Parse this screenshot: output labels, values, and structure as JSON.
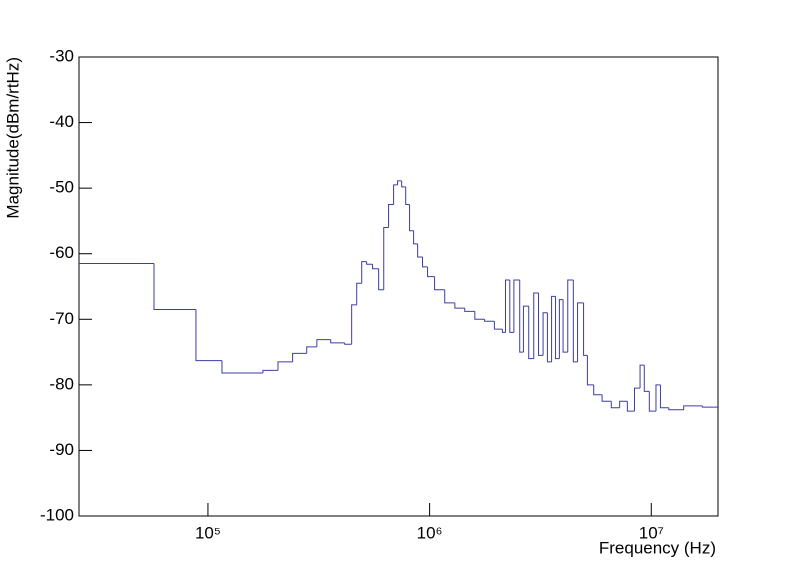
{
  "chart_data": {
    "type": "histogram",
    "x_label": "Frequency (Hz)",
    "y_label": "Magnitude(dBm/rtHz)",
    "xscale": "log",
    "color": "#3c3ca8",
    "grid": false,
    "xlim": [
      26200,
      20000000
    ],
    "ylim": [
      -100,
      -30
    ],
    "xticks": [
      {
        "value": 100000,
        "label": "10⁵"
      },
      {
        "value": 1000000,
        "label": "10⁶"
      },
      {
        "value": 10000000,
        "label": "10⁷"
      }
    ],
    "yticks": [
      -100,
      -90,
      -80,
      -70,
      -60,
      -50,
      -40,
      -30
    ],
    "bins": [
      26200,
      57100,
      88300,
      115700,
      177000,
      207000,
      241000,
      279000,
      310000,
      358000,
      414000,
      445000,
      469000,
      494000,
      520000,
      553000,
      589000,
      621000,
      653000,
      688000,
      717000,
      748000,
      780000,
      812000,
      847000,
      883000,
      929000,
      979000,
      1053000,
      1170000,
      1300000,
      1440000,
      1600000,
      1770000,
      1960000,
      2130000,
      2200000,
      2300000,
      2400000,
      2550000,
      2650000,
      2800000,
      2950000,
      3100000,
      3250000,
      3400000,
      3550000,
      3700000,
      3850000,
      4000000,
      4200000,
      4450000,
      4650000,
      4950000,
      5150000,
      5500000,
      6000000,
      6600000,
      7200000,
      7800000,
      8400000,
      8900000,
      9300000,
      9800000,
      10500000,
      11000000,
      12000000,
      14000000,
      17000000,
      20000000
    ],
    "values": [
      -61.5,
      -68.5,
      -76.3,
      -78.2,
      -77.8,
      -76.5,
      -75.2,
      -74.2,
      -73.1,
      -73.6,
      -73.8,
      -67.8,
      -64.5,
      -61.2,
      -61.6,
      -62.3,
      -65.5,
      -56,
      -52.5,
      -49.5,
      -48.9,
      -49.8,
      -52.5,
      -56.5,
      -58.5,
      -60.5,
      -62,
      -63.5,
      -65.5,
      -67.5,
      -68.3,
      -68.8,
      -70,
      -70.3,
      -71.5,
      -72,
      -64,
      -72,
      -64,
      -75,
      -68,
      -76,
      -66,
      -75.5,
      -69,
      -76.5,
      -66.5,
      -76,
      -67,
      -75,
      -64,
      -76.5,
      -67.5,
      -75.5,
      -80,
      -81.5,
      -82.5,
      -83.5,
      -82.5,
      -84,
      -80.5,
      -77,
      -81,
      -84,
      -80,
      -83.5,
      -83.8,
      -83.2,
      -83.4
    ]
  }
}
